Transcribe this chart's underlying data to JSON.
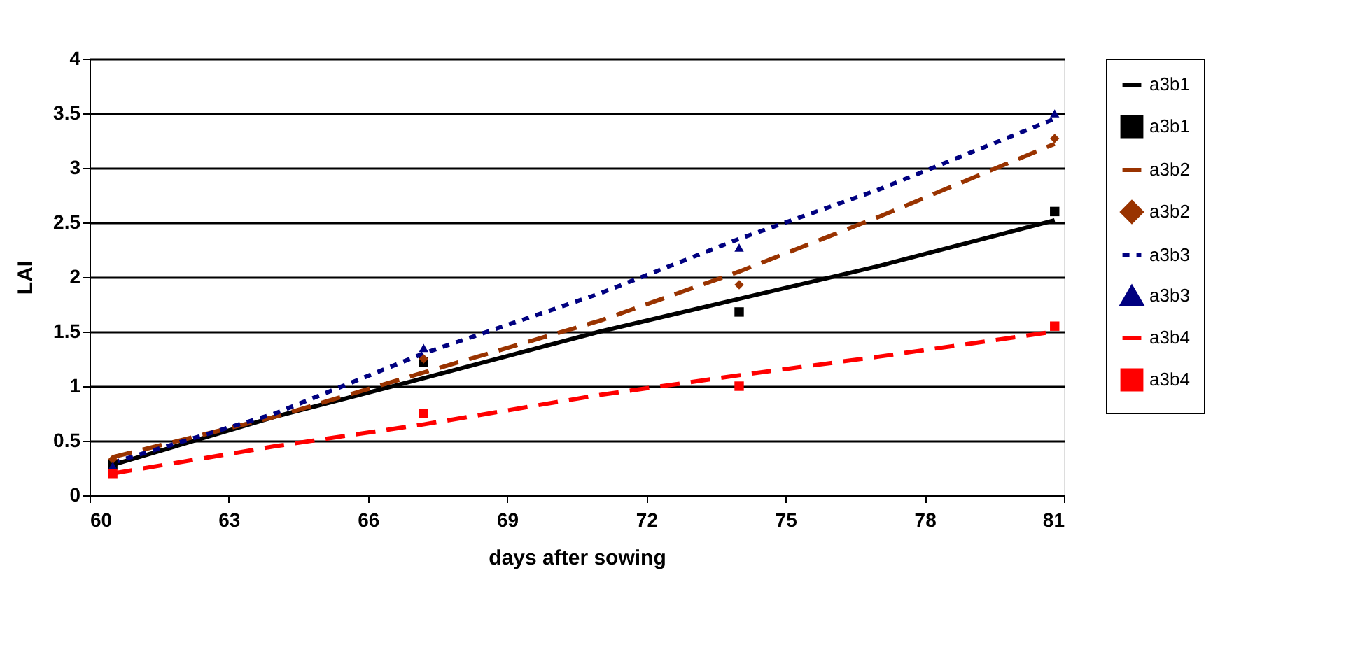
{
  "chart_data": {
    "type": "line",
    "xlabel": "days after sowing",
    "ylabel": "LAI",
    "xlim": [
      60,
      81
    ],
    "xticks": [
      60,
      63,
      66,
      69,
      72,
      75,
      78,
      81
    ],
    "ylim": [
      0,
      4
    ],
    "yticks": [
      0,
      0.5,
      1,
      1.5,
      2,
      2.5,
      3,
      3.5,
      4
    ],
    "grid": "y",
    "legend": "right",
    "series": [
      {
        "name": "a3b1",
        "type": "line",
        "color": "#000000",
        "line_style": "solid",
        "marker": "none",
        "x": [
          60.5,
          64,
          67,
          71,
          74,
          77,
          80.8
        ],
        "values": [
          0.28,
          0.72,
          1.05,
          1.5,
          1.8,
          2.1,
          2.52
        ]
      },
      {
        "name": "a3b1",
        "type": "scatter",
        "color": "#000000",
        "marker": "square",
        "x": [
          60.5,
          67.2,
          74,
          80.8
        ],
        "values": [
          0.28,
          1.22,
          1.68,
          2.6
        ]
      },
      {
        "name": "a3b2",
        "type": "line",
        "color": "#993300",
        "line_style": "dashed",
        "marker": "none",
        "x": [
          60.5,
          64,
          67,
          71,
          74,
          77,
          80.8
        ],
        "values": [
          0.35,
          0.72,
          1.1,
          1.6,
          2.05,
          2.55,
          3.22
        ]
      },
      {
        "name": "a3b2",
        "type": "scatter",
        "color": "#993300",
        "marker": "diamond",
        "x": [
          60.5,
          67.2,
          74,
          80.8
        ],
        "values": [
          0.33,
          1.25,
          1.93,
          3.27
        ]
      },
      {
        "name": "a3b3",
        "type": "line",
        "color": "#000080",
        "line_style": "dotted",
        "marker": "none",
        "x": [
          60.5,
          64,
          67.2,
          71,
          74,
          77,
          80.8
        ],
        "values": [
          0.3,
          0.75,
          1.3,
          1.85,
          2.35,
          2.8,
          3.45
        ]
      },
      {
        "name": "a3b3",
        "type": "scatter",
        "color": "#000080",
        "marker": "triangle",
        "x": [
          60.5,
          67.2,
          74,
          80.8
        ],
        "values": [
          0.27,
          1.35,
          2.27,
          3.5
        ]
      },
      {
        "name": "a3b4",
        "type": "line",
        "color": "#ff0000",
        "line_style": "dashed",
        "marker": "none",
        "x": [
          60.5,
          64,
          67.2,
          71,
          74,
          77,
          80.8
        ],
        "values": [
          0.2,
          0.45,
          0.65,
          0.92,
          1.1,
          1.27,
          1.5
        ]
      },
      {
        "name": "a3b4",
        "type": "scatter",
        "color": "#ff0000",
        "marker": "square",
        "x": [
          60.5,
          67.2,
          74,
          80.8
        ],
        "values": [
          0.2,
          0.75,
          1.0,
          1.55
        ]
      }
    ]
  }
}
